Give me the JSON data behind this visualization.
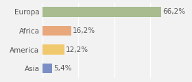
{
  "categories": [
    "Europa",
    "Africa",
    "America",
    "Asia"
  ],
  "values": [
    66.2,
    16.2,
    12.2,
    5.4
  ],
  "labels": [
    "66,2%",
    "16,2%",
    "12,2%",
    "5,4%"
  ],
  "bar_colors": [
    "#a8bc8f",
    "#e8a87c",
    "#f0c96e",
    "#7b8fc4"
  ],
  "background_color": "#f2f2f2",
  "xlim": [
    0,
    80
  ],
  "label_fontsize": 7.5,
  "tick_fontsize": 7.5,
  "bar_height": 0.52,
  "grid_color": "#ffffff",
  "grid_xticks": [
    0,
    20,
    40,
    60,
    80
  ]
}
